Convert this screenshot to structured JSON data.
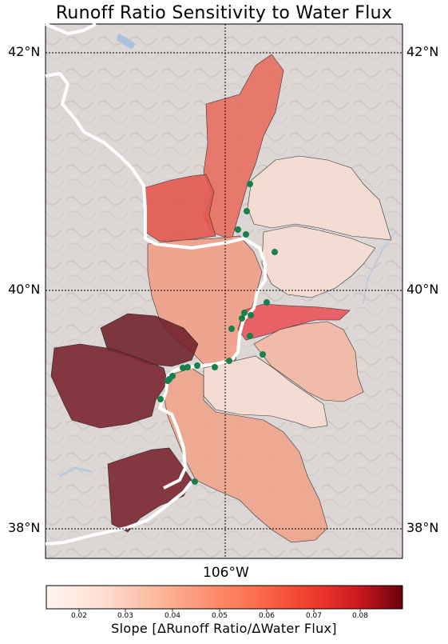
{
  "title": "Runoff Ratio Sensitivity to Water Flux",
  "lat_labels": {
    "north": "42°N",
    "middle": "40°N",
    "south": "38°N"
  },
  "lon_label": "106°W",
  "colorbar": {
    "label": "Slope [ΔRunoff Ratio/ΔWater Flux]",
    "ticks": [
      "0.02",
      "0.03",
      "0.04",
      "0.05",
      "0.06",
      "0.07",
      "0.08"
    ],
    "range": [
      0.013,
      0.089
    ],
    "colormap": "Reds"
  },
  "colors": {
    "basin_very_high": "#7b2630",
    "basin_high": "#e76f61",
    "basin_mid": "#ef9e87",
    "basin_low": "#f7ddd3",
    "basin_mid_red": "#e8545a",
    "state_border": "#ffffff",
    "gauge": "#17804a",
    "terrain": "#d9d4d2"
  },
  "gauge_count": 22
}
